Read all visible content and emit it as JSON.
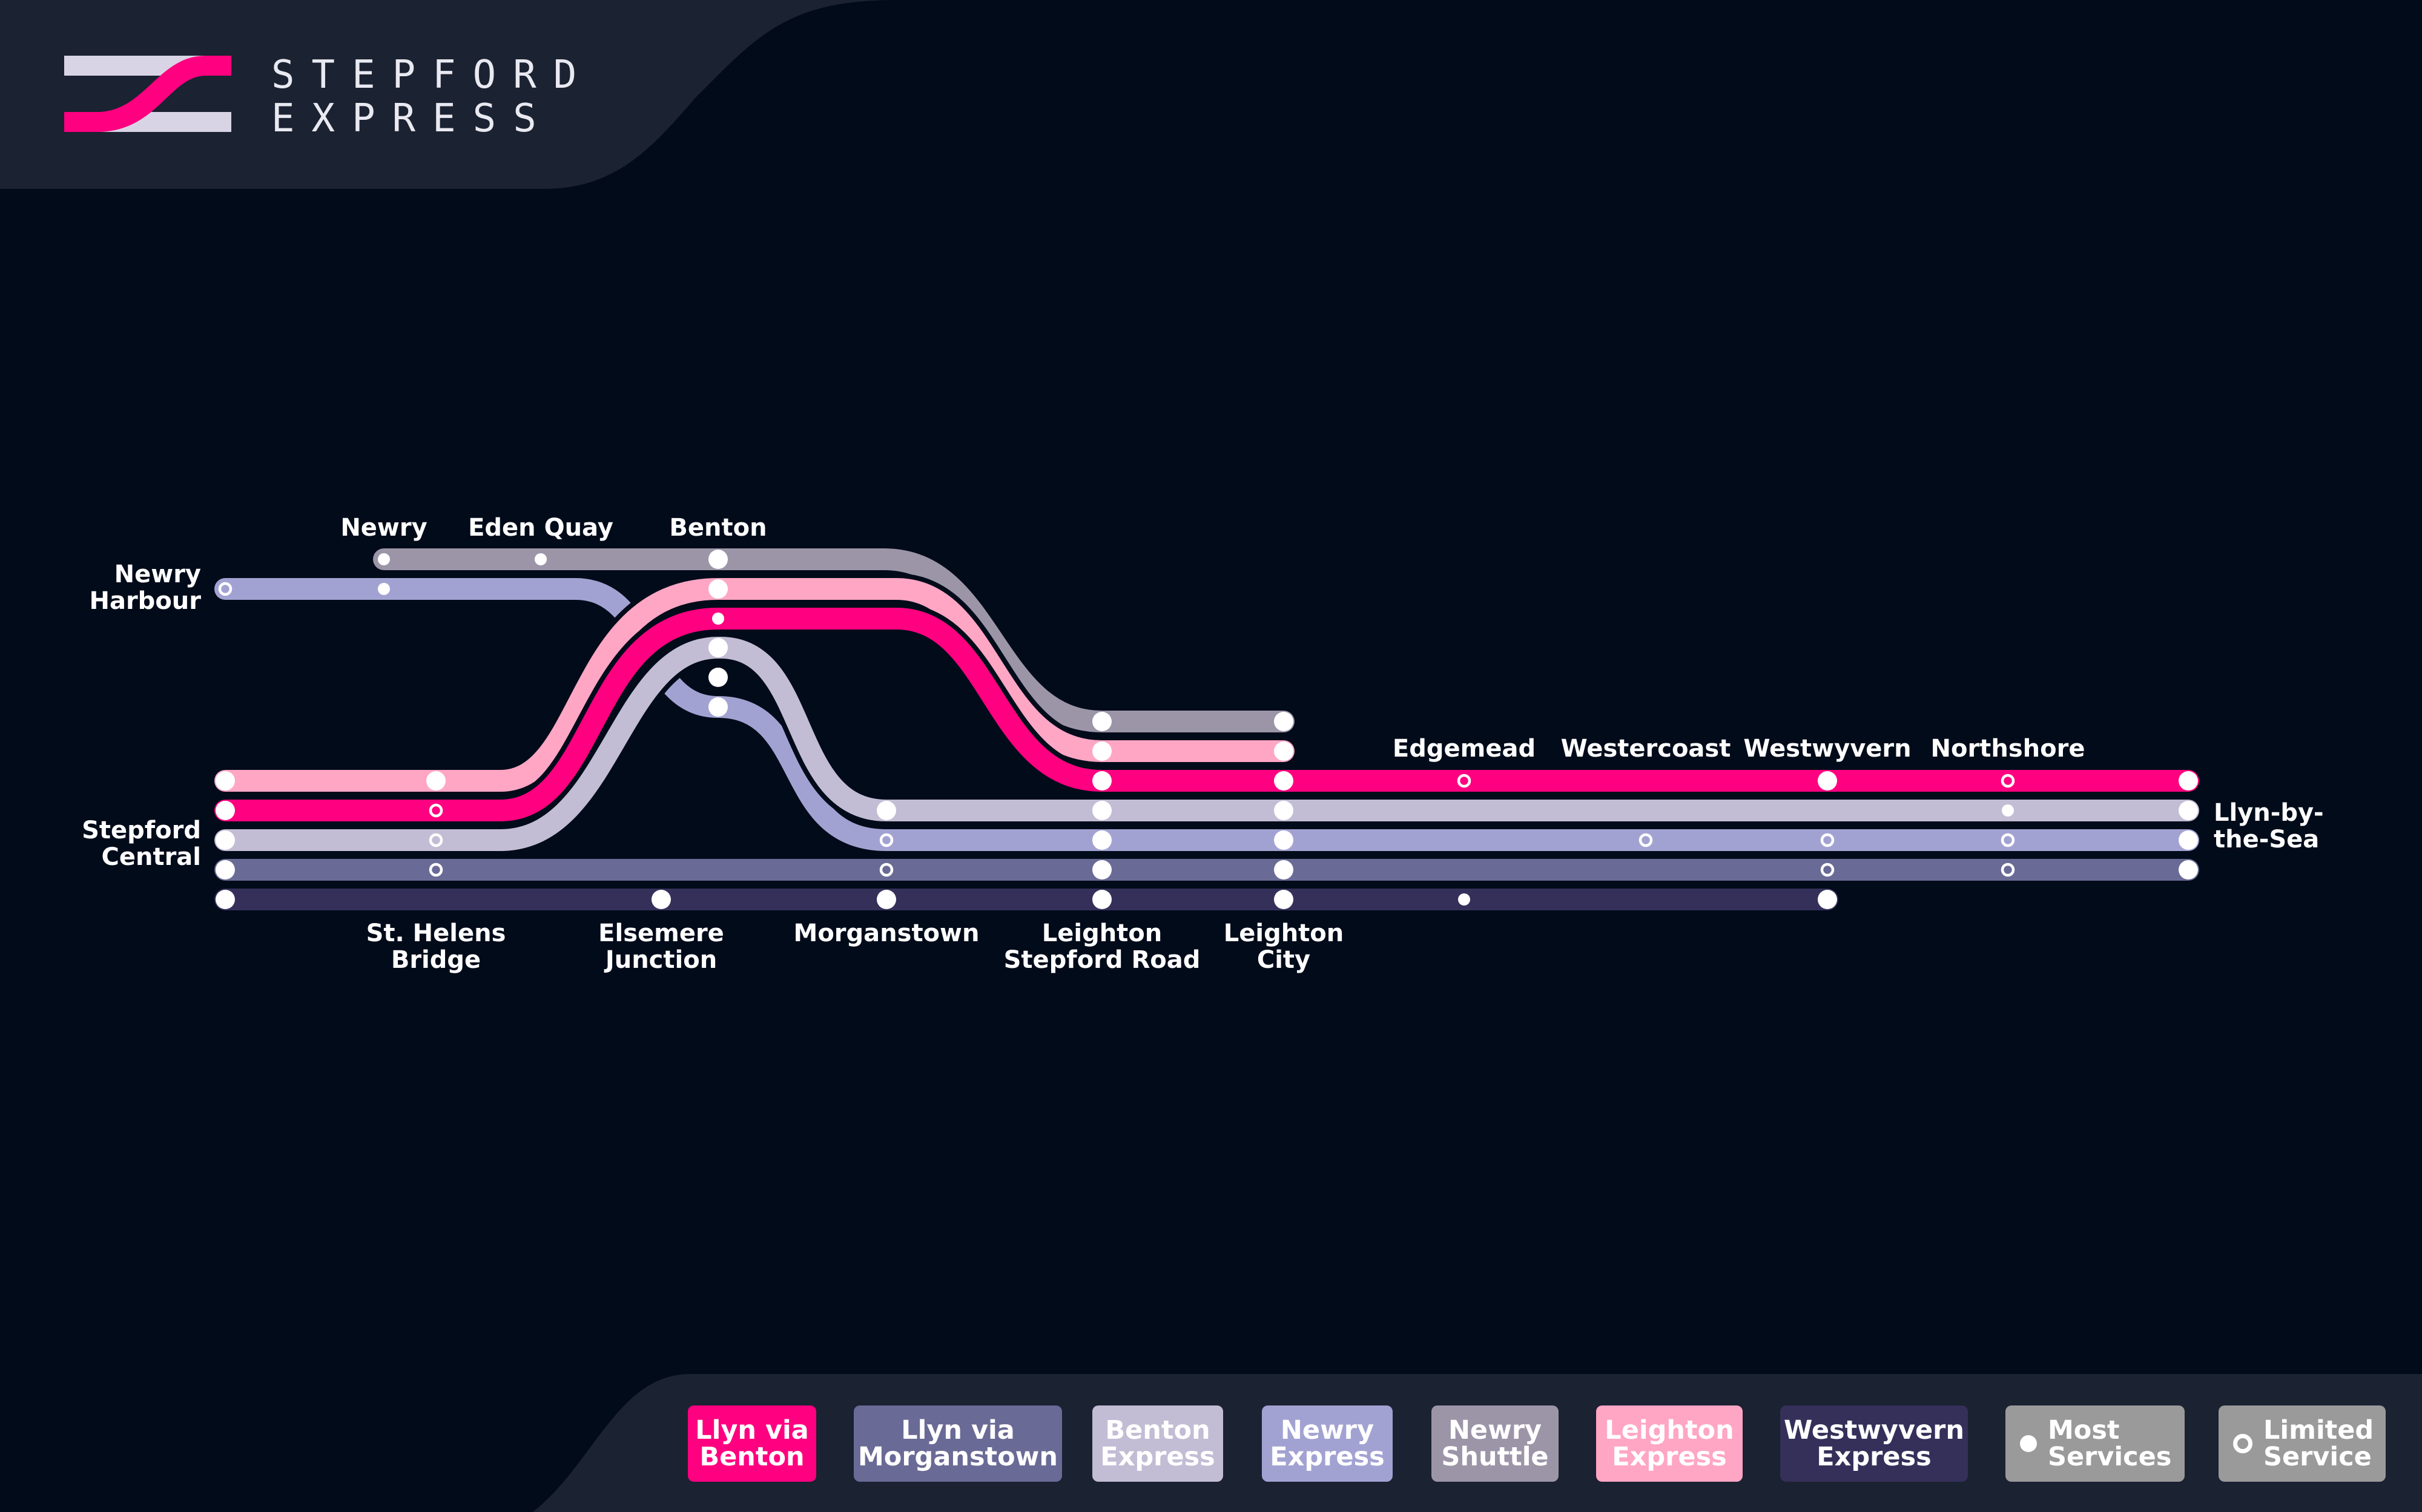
{
  "brand": {
    "line1": "STEPFORD",
    "line2": "EXPRESS"
  },
  "colors": {
    "background": "#020b1a",
    "panel": "#1b2232",
    "llyn_via_benton": "#ff0080",
    "llyn_via_morganstown": "#6a6a96",
    "benton_express": "#c2bdd4",
    "newry_express": "#a2a2d2",
    "newry_shuttle": "#9c95a8",
    "leighton_express": "#ffa6c4",
    "westwyvern_express": "#35305a"
  },
  "stations": {
    "newry": "Newry",
    "eden_quay": "Eden Quay",
    "benton": "Benton",
    "newry_harbour": "Newry\nHarbour",
    "stepford_central": "Stepford\nCentral",
    "st_helens_bridge": "St. Helens\nBridge",
    "elsemere_junction": "Elsemere\nJunction",
    "morganstown": "Morganstown",
    "leighton_stepford_road": "Leighton\nStepford Road",
    "leighton_city": "Leighton\nCity",
    "edgemead": "Edgemead",
    "westercoast": "Westercoast",
    "westwyvern": "Westwyvern",
    "northshore": "Northshore",
    "llyn_by_the_sea": "Llyn-by-\nthe-Sea"
  },
  "legend": [
    {
      "label": "Llyn via\nBenton",
      "color": "#ff0080",
      "text_color": "#ffffff"
    },
    {
      "label": "Llyn via\nMorganstown",
      "color": "#6a6a96",
      "text_color": "#ffffff"
    },
    {
      "label": "Benton\nExpress",
      "color": "#c2bdd4",
      "text_color": "#ffffff"
    },
    {
      "label": "Newry\nExpress",
      "color": "#a2a2d2",
      "text_color": "#ffffff"
    },
    {
      "label": "Newry\nShuttle",
      "color": "#9c95a8",
      "text_color": "#ffffff"
    },
    {
      "label": "Leighton\nExpress",
      "color": "#ffa6c4",
      "text_color": "#ffffff"
    },
    {
      "label": "Westwyvern\nExpress",
      "color": "#35305a",
      "text_color": "#ffffff"
    }
  ],
  "symbols": {
    "most_services": "Most\nServices",
    "limited_service": "Limited\nService"
  }
}
